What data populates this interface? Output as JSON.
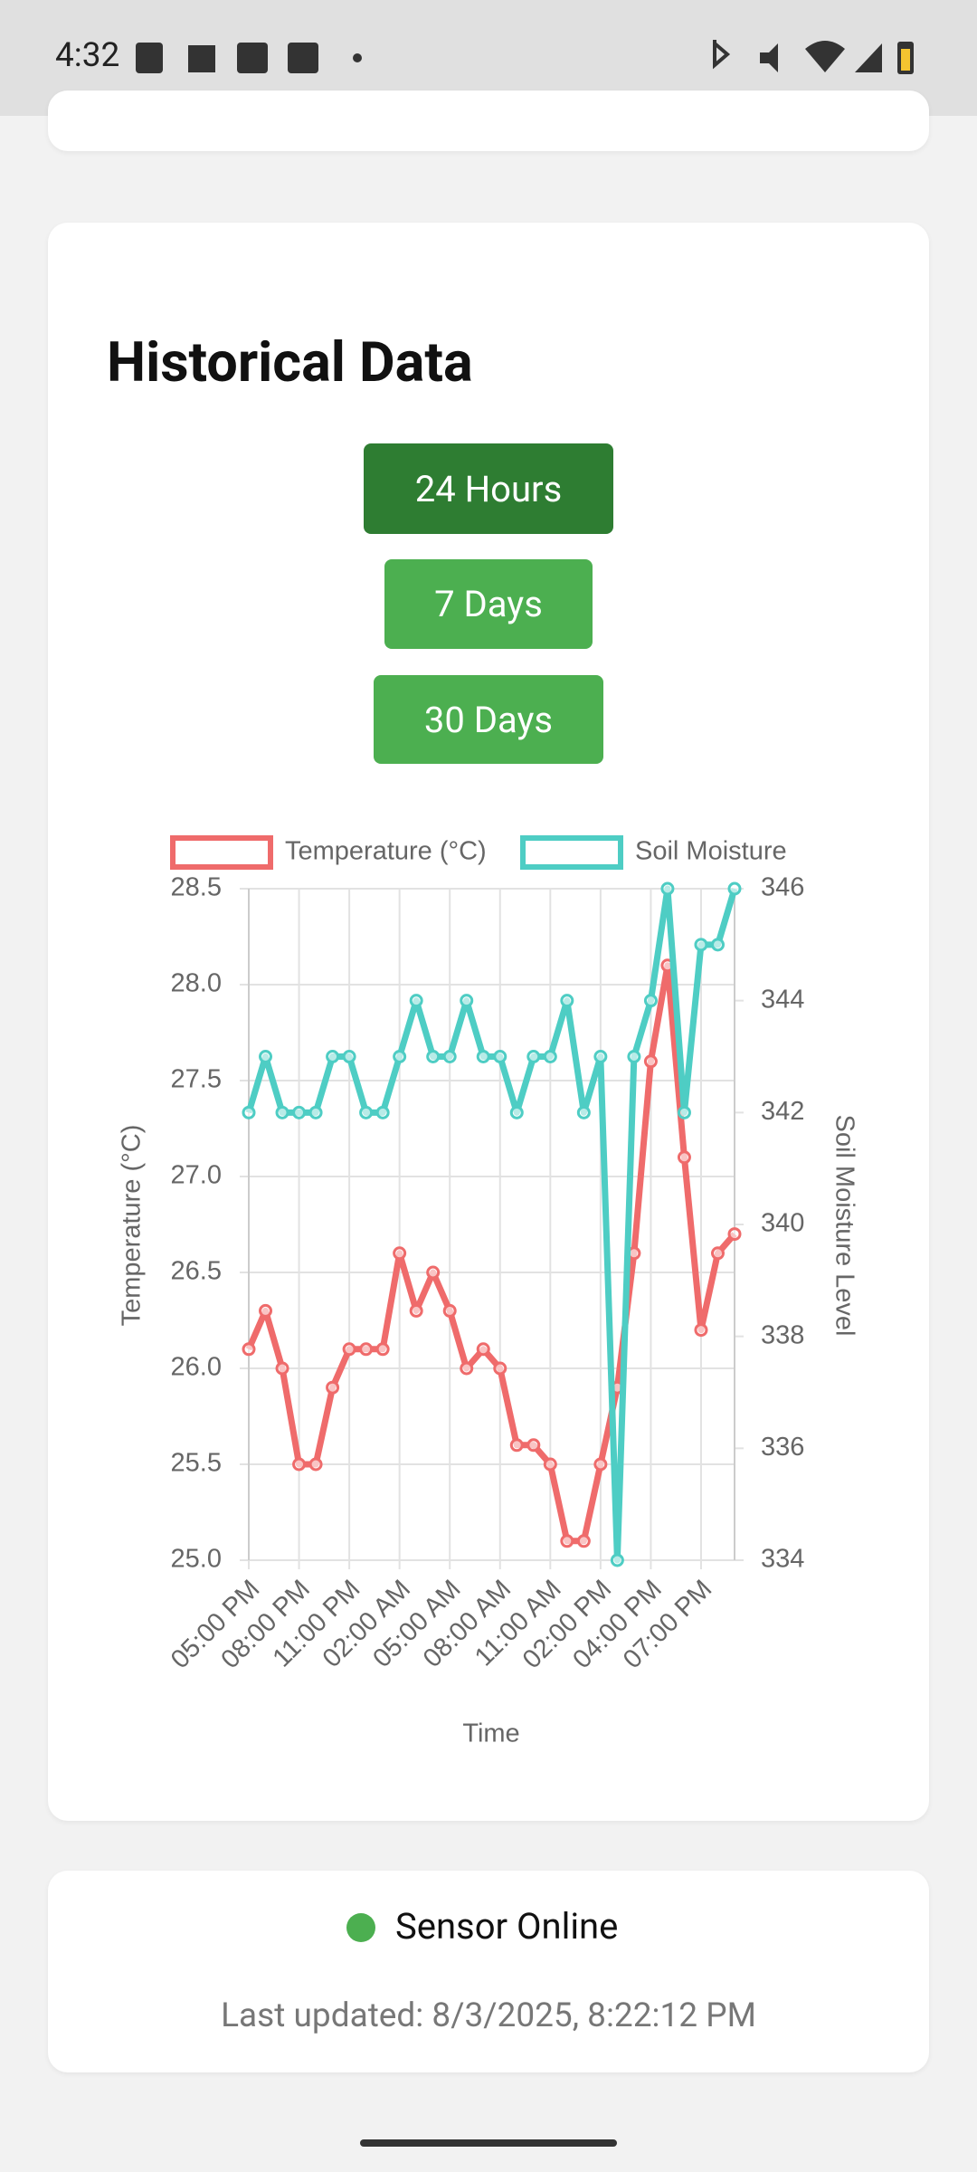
{
  "status_bar": {
    "time": "4:32"
  },
  "historical": {
    "title": "Historical Data",
    "buttons": [
      "24 Hours",
      "7 Days",
      "30 Days"
    ]
  },
  "chart_data": {
    "type": "line",
    "x_label": "Time",
    "y_label": "Temperature (°C)",
    "y2_label": "Soil Moisture Level",
    "categories": [
      "05:00 PM",
      null,
      null,
      "08:00 PM",
      null,
      null,
      "11:00 PM",
      null,
      null,
      "02:00 AM",
      null,
      null,
      "05:00 AM",
      null,
      null,
      "08:00 AM",
      null,
      null,
      "11:00 AM",
      null,
      null,
      "02:00 PM",
      null,
      null,
      "04:00 PM",
      null,
      null,
      "07:00 PM",
      null,
      null
    ],
    "series": [
      {
        "name": "Temperature (°C)",
        "color": "#ef6b6b",
        "values": [
          26.1,
          26.3,
          26.0,
          25.5,
          25.5,
          25.9,
          26.1,
          26.1,
          26.1,
          26.6,
          26.3,
          26.5,
          26.3,
          26.0,
          26.1,
          26.0,
          25.6,
          25.6,
          25.5,
          25.1,
          25.1,
          25.5,
          25.9,
          26.6,
          27.6,
          28.1,
          27.1,
          26.2,
          26.6,
          26.7
        ]
      },
      {
        "name": "Soil Moisture",
        "color": "#4ecdc4",
        "axis": "y2",
        "values": [
          342,
          343,
          342,
          342,
          342,
          343,
          343,
          342,
          342,
          343,
          344,
          343,
          343,
          344,
          343,
          343,
          342,
          343,
          343,
          344,
          342,
          343,
          334,
          343,
          344,
          346,
          342,
          345,
          345,
          346
        ]
      }
    ],
    "ylim": [
      25,
      28.5
    ],
    "yticks": [
      {
        "value": 25,
        "label": "25.0"
      },
      {
        "value": 25.5,
        "label": "25.5"
      },
      {
        "value": 26,
        "label": "26.0"
      },
      {
        "value": 26.5,
        "label": "26.5"
      },
      {
        "value": 27,
        "label": "27.0"
      },
      {
        "value": 27.5,
        "label": "27.5"
      },
      {
        "value": 28,
        "label": "28.0"
      },
      {
        "value": 28.5,
        "label": "28.5"
      }
    ],
    "y2lim": [
      334,
      346
    ],
    "y2ticks": [
      334,
      336,
      338,
      340,
      342,
      344,
      346
    ],
    "grid": true,
    "legend": "top"
  },
  "status": {
    "label": "Sensor Online",
    "last_updated": "Last updated: 8/3/2025, 8:22:12 PM"
  }
}
